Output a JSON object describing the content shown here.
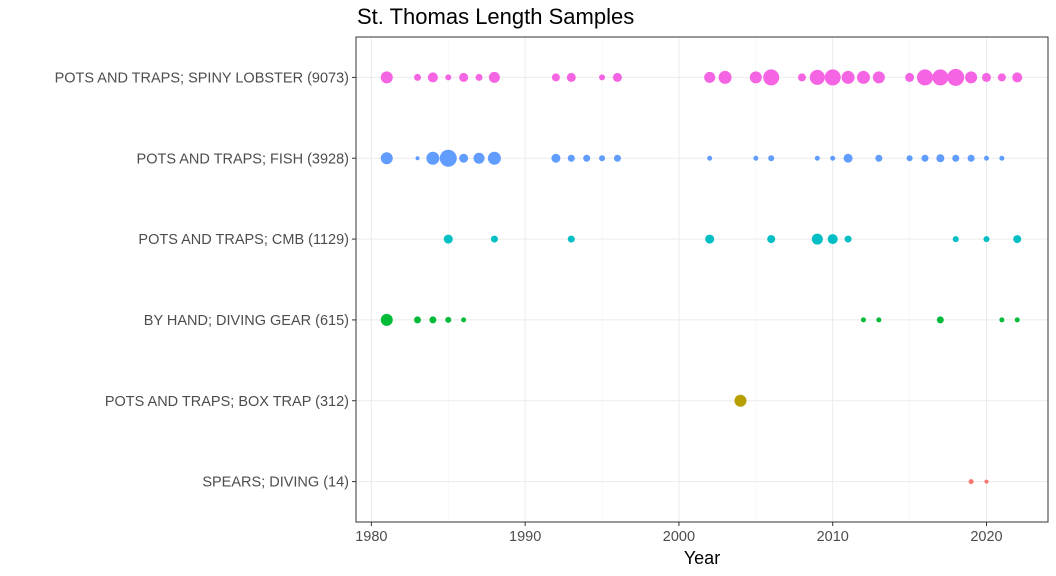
{
  "chart_data": {
    "type": "scatter",
    "title": "St. Thomas Length Samples",
    "xlabel": "Year",
    "ylabel": "",
    "xlim": [
      1979,
      2024
    ],
    "x_ticks": [
      1980,
      1990,
      2000,
      2010,
      2020
    ],
    "grid": true,
    "legend": "none",
    "categories": [
      "SPEARS; DIVING (14)",
      "POTS AND TRAPS; BOX TRAP (312)",
      "BY HAND; DIVING GEAR (615)",
      "POTS AND TRAPS; CMB (1129)",
      "POTS AND TRAPS; FISH (3928)",
      "POTS AND TRAPS; SPINY LOBSTER (9073)"
    ],
    "series": [
      {
        "category": "POTS AND TRAPS; SPINY LOBSTER (9073)",
        "color": "#F564E3",
        "points": [
          {
            "x": 1981,
            "r": 6
          },
          {
            "x": 1983,
            "r": 3.5
          },
          {
            "x": 1984,
            "r": 5
          },
          {
            "x": 1985,
            "r": 3
          },
          {
            "x": 1986,
            "r": 4.5
          },
          {
            "x": 1987,
            "r": 3.5
          },
          {
            "x": 1988,
            "r": 5.5
          },
          {
            "x": 1992,
            "r": 4
          },
          {
            "x": 1993,
            "r": 4.5
          },
          {
            "x": 1995,
            "r": 3
          },
          {
            "x": 1996,
            "r": 4.5
          },
          {
            "x": 2002,
            "r": 5.5
          },
          {
            "x": 2003,
            "r": 6.5
          },
          {
            "x": 2005,
            "r": 6
          },
          {
            "x": 2006,
            "r": 8
          },
          {
            "x": 2008,
            "r": 4
          },
          {
            "x": 2009,
            "r": 7.5
          },
          {
            "x": 2010,
            "r": 8
          },
          {
            "x": 2011,
            "r": 6.5
          },
          {
            "x": 2012,
            "r": 6.5
          },
          {
            "x": 2013,
            "r": 6
          },
          {
            "x": 2015,
            "r": 4.5
          },
          {
            "x": 2016,
            "r": 8
          },
          {
            "x": 2017,
            "r": 8
          },
          {
            "x": 2018,
            "r": 8.5
          },
          {
            "x": 2019,
            "r": 6
          },
          {
            "x": 2020,
            "r": 4.5
          },
          {
            "x": 2021,
            "r": 4
          },
          {
            "x": 2022,
            "r": 5
          }
        ]
      },
      {
        "category": "POTS AND TRAPS; FISH (3928)",
        "color": "#619CFF",
        "points": [
          {
            "x": 1981,
            "r": 6
          },
          {
            "x": 1983,
            "r": 2
          },
          {
            "x": 1984,
            "r": 6.5
          },
          {
            "x": 1985,
            "r": 8.5
          },
          {
            "x": 1986,
            "r": 4.5
          },
          {
            "x": 1987,
            "r": 5.5
          },
          {
            "x": 1988,
            "r": 6.5
          },
          {
            "x": 1992,
            "r": 4.5
          },
          {
            "x": 1993,
            "r": 3.5
          },
          {
            "x": 1994,
            "r": 3.5
          },
          {
            "x": 1995,
            "r": 3
          },
          {
            "x": 1996,
            "r": 3.5
          },
          {
            "x": 2002,
            "r": 2.5
          },
          {
            "x": 2005,
            "r": 2.5
          },
          {
            "x": 2006,
            "r": 3
          },
          {
            "x": 2009,
            "r": 2.5
          },
          {
            "x": 2010,
            "r": 2.5
          },
          {
            "x": 2011,
            "r": 4.5
          },
          {
            "x": 2013,
            "r": 3.5
          },
          {
            "x": 2015,
            "r": 3
          },
          {
            "x": 2016,
            "r": 3.5
          },
          {
            "x": 2017,
            "r": 4
          },
          {
            "x": 2018,
            "r": 3.5
          },
          {
            "x": 2019,
            "r": 3.5
          },
          {
            "x": 2020,
            "r": 2.5
          },
          {
            "x": 2021,
            "r": 2.5
          }
        ]
      },
      {
        "category": "POTS AND TRAPS; CMB (1129)",
        "color": "#00BFC4",
        "points": [
          {
            "x": 1985,
            "r": 4.5
          },
          {
            "x": 1988,
            "r": 3.5
          },
          {
            "x": 1993,
            "r": 3.5
          },
          {
            "x": 2002,
            "r": 4.5
          },
          {
            "x": 2006,
            "r": 4
          },
          {
            "x": 2009,
            "r": 5.5
          },
          {
            "x": 2010,
            "r": 5
          },
          {
            "x": 2011,
            "r": 3.5
          },
          {
            "x": 2018,
            "r": 3
          },
          {
            "x": 2020,
            "r": 3
          },
          {
            "x": 2022,
            "r": 4
          }
        ]
      },
      {
        "category": "BY HAND; DIVING GEAR (615)",
        "color": "#00BA38",
        "points": [
          {
            "x": 1981,
            "r": 6
          },
          {
            "x": 1983,
            "r": 3.5
          },
          {
            "x": 1984,
            "r": 3.5
          },
          {
            "x": 1985,
            "r": 3
          },
          {
            "x": 1986,
            "r": 2.5
          },
          {
            "x": 2012,
            "r": 2.5
          },
          {
            "x": 2013,
            "r": 2.5
          },
          {
            "x": 2017,
            "r": 3.5
          },
          {
            "x": 2021,
            "r": 2.5
          },
          {
            "x": 2022,
            "r": 2.5
          }
        ]
      },
      {
        "category": "POTS AND TRAPS; BOX TRAP (312)",
        "color": "#B79F00",
        "points": [
          {
            "x": 2004,
            "r": 6
          }
        ]
      },
      {
        "category": "SPEARS; DIVING (14)",
        "color": "#F8766D",
        "points": [
          {
            "x": 2019,
            "r": 2.5
          },
          {
            "x": 2020,
            "r": 2
          }
        ]
      }
    ]
  }
}
